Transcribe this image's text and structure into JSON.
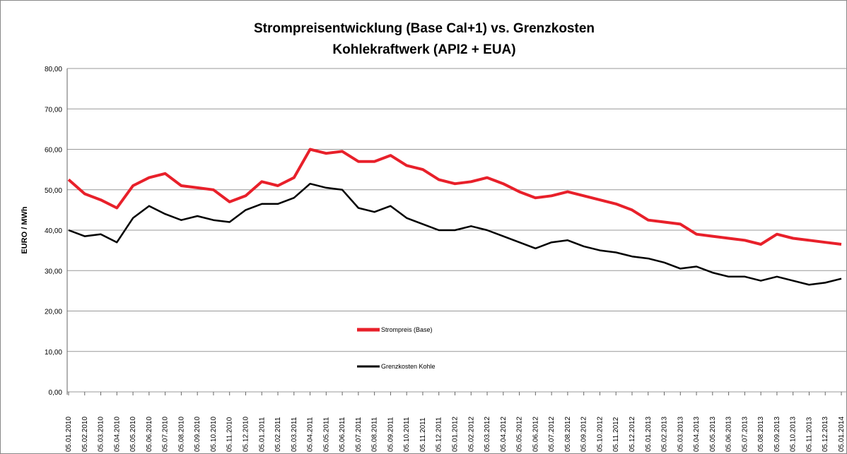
{
  "chart_data": {
    "type": "line",
    "title": [
      "Strompreisentwicklung (Base Cal+1) vs. Grenzkosten",
      "Kohlekraftwerk (API2 + EUA)"
    ],
    "y_label": "EURO / MWh",
    "categories": [
      "05.01.2010",
      "05.02.2010",
      "05.03.2010",
      "05.04.2010",
      "05.05.2010",
      "05.06.2010",
      "05.07.2010",
      "05.08.2010",
      "05.09.2010",
      "05.10.2010",
      "05.11.2010",
      "05.12.2010",
      "05.01.2011",
      "05.02.2011",
      "05.03.2011",
      "05.04.2011",
      "05.05.2011",
      "05.06.2011",
      "05.07.2011",
      "05.08.2011",
      "05.09.2011",
      "05.10.2011",
      "05.11.2011",
      "05.12.2011",
      "05.01.2012",
      "05.02.2012",
      "05.03.2012",
      "05.04.2012",
      "05.05.2012",
      "05.06.2012",
      "05.07.2012",
      "05.08.2012",
      "05.09.2012",
      "05.10.2012",
      "05.11.2012",
      "05.12.2012",
      "05.01.2013",
      "05.02.2013",
      "05.03.2013",
      "05.04.2013",
      "05.05.2013",
      "05.06.2013",
      "05.07.2013",
      "05.08.2013",
      "05.09.2013",
      "05.10.2013",
      "05.11.2013",
      "05.12.2013",
      "05.01.2014"
    ],
    "series": [
      {
        "name": "Strompreis (Base)",
        "color": "#e8202a",
        "values": [
          52.5,
          49,
          47.5,
          45.5,
          51,
          53,
          54,
          51,
          50.5,
          50,
          47,
          48.5,
          52,
          51,
          53,
          60,
          59,
          59.5,
          57,
          57,
          58.5,
          56,
          55,
          52.5,
          51.5,
          52,
          53,
          51.5,
          49.5,
          48,
          48.5,
          49.5,
          48.5,
          47.5,
          46.5,
          45,
          42.5,
          42,
          41.5,
          39,
          38.5,
          38,
          37.5,
          36.5,
          39,
          38,
          37.5,
          37,
          36.5
        ]
      },
      {
        "name": "Grenzkosten Kohle",
        "color": "#000000",
        "values": [
          40,
          38.5,
          39,
          37,
          43,
          46,
          44,
          42.5,
          43.5,
          42.5,
          42,
          45,
          46.5,
          46.5,
          48,
          51.5,
          50.5,
          50,
          45.5,
          44.5,
          46,
          43,
          41.5,
          40,
          40,
          41,
          40,
          38.5,
          37,
          35.5,
          37,
          37.5,
          36,
          35,
          34.5,
          33.5,
          33,
          32,
          30.5,
          31,
          29.5,
          28.5,
          28.5,
          27.5,
          28.5,
          27.5,
          26.5,
          27,
          28
        ]
      }
    ],
    "ylim": [
      0,
      80
    ],
    "yticks": [
      {
        "value": 0,
        "label": "0,00"
      },
      {
        "value": 10,
        "label": "10,00"
      },
      {
        "value": 20,
        "label": "20,00"
      },
      {
        "value": 30,
        "label": "30,00"
      },
      {
        "value": 40,
        "label": "40,00"
      },
      {
        "value": 50,
        "label": "50,00"
      },
      {
        "value": 60,
        "label": "60,00"
      },
      {
        "value": 70,
        "label": "70,00"
      },
      {
        "value": 80,
        "label": "80,00"
      }
    ],
    "grid": true
  }
}
